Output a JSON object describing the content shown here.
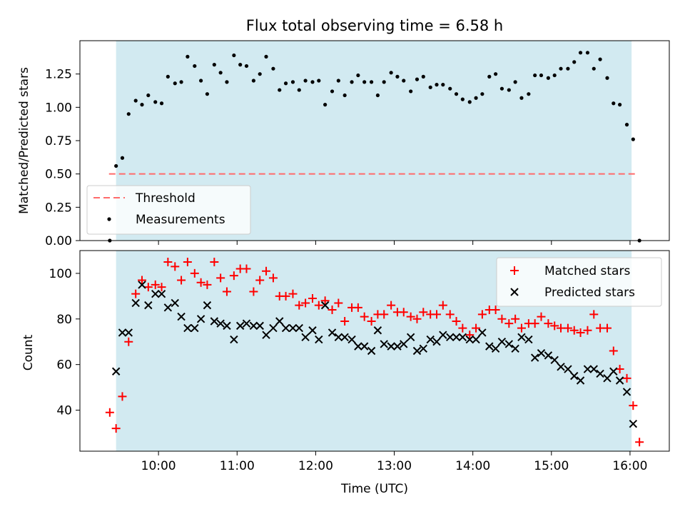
{
  "chart_data": [
    {
      "type": "scatter",
      "title": "Flux total observing time = 6.58 h",
      "xlabel": "",
      "ylabel": "Matched/Predicted stars",
      "xlim": [
        9.0,
        16.5
      ],
      "ylim": [
        0.0,
        1.5
      ],
      "xticks": [
        10,
        11,
        12,
        13,
        14,
        15,
        16
      ],
      "yticks": [
        0.0,
        0.25,
        0.5,
        0.75,
        1.0,
        1.25
      ],
      "ytick_labels": [
        "0.00",
        "0.25",
        "0.50",
        "0.75",
        "1.00",
        "1.25"
      ],
      "shaded_span": {
        "x_start": 9.46,
        "x_end": 16.02,
        "color": "#add8e6"
      },
      "threshold": {
        "name": "Threshold",
        "y": 0.5,
        "x_start": 9.37,
        "x_end": 16.07,
        "color": "#ff6b6b"
      },
      "legend_position": "lower-left",
      "series": [
        {
          "name": "Measurements",
          "marker": "dot",
          "color": "#000000",
          "x": [
            9.38,
            9.46,
            9.54,
            9.62,
            9.71,
            9.79,
            9.87,
            9.96,
            10.04,
            10.12,
            10.21,
            10.29,
            10.37,
            10.46,
            10.54,
            10.62,
            10.71,
            10.79,
            10.87,
            10.96,
            11.04,
            11.12,
            11.21,
            11.29,
            11.37,
            11.46,
            11.54,
            11.62,
            11.71,
            11.79,
            11.87,
            11.96,
            12.04,
            12.12,
            12.21,
            12.29,
            12.37,
            12.46,
            12.54,
            12.62,
            12.71,
            12.79,
            12.87,
            12.96,
            13.04,
            13.12,
            13.21,
            13.29,
            13.37,
            13.46,
            13.54,
            13.62,
            13.71,
            13.79,
            13.87,
            13.96,
            14.04,
            14.12,
            14.21,
            14.29,
            14.37,
            14.46,
            14.54,
            14.62,
            14.71,
            14.79,
            14.87,
            14.96,
            15.04,
            15.12,
            15.21,
            15.29,
            15.37,
            15.46,
            15.54,
            15.62,
            15.71,
            15.79,
            15.87,
            15.96,
            16.04,
            16.12
          ],
          "y": [
            0.0,
            0.56,
            0.62,
            0.95,
            1.05,
            1.02,
            1.09,
            1.04,
            1.03,
            1.23,
            1.18,
            1.19,
            1.38,
            1.31,
            1.2,
            1.1,
            1.32,
            1.26,
            1.19,
            1.39,
            1.32,
            1.31,
            1.2,
            1.25,
            1.38,
            1.29,
            1.13,
            1.18,
            1.19,
            1.13,
            1.2,
            1.19,
            1.2,
            1.02,
            1.12,
            1.2,
            1.09,
            1.19,
            1.24,
            1.19,
            1.19,
            1.09,
            1.19,
            1.26,
            1.23,
            1.2,
            1.12,
            1.21,
            1.23,
            1.15,
            1.17,
            1.17,
            1.14,
            1.1,
            1.06,
            1.04,
            1.07,
            1.1,
            1.23,
            1.25,
            1.14,
            1.13,
            1.19,
            1.07,
            1.1,
            1.24,
            1.24,
            1.22,
            1.24,
            1.29,
            1.29,
            1.34,
            1.41,
            1.41,
            1.29,
            1.36,
            1.22,
            1.03,
            1.02,
            0.87,
            0.76,
            0.0
          ]
        }
      ]
    },
    {
      "type": "scatter",
      "title": "",
      "xlabel": "Time (UTC)",
      "ylabel": "Count",
      "xlim": [
        9.0,
        16.5
      ],
      "ylim": [
        22,
        110
      ],
      "xticks": [
        10,
        11,
        12,
        13,
        14,
        15,
        16
      ],
      "xtick_labels": [
        "10:00",
        "11:00",
        "12:00",
        "13:00",
        "14:00",
        "15:00",
        "16:00"
      ],
      "yticks": [
        40,
        60,
        80,
        100
      ],
      "ytick_labels": [
        "40",
        "60",
        "80",
        "100"
      ],
      "shaded_span": {
        "x_start": 9.46,
        "x_end": 16.02,
        "color": "#add8e6"
      },
      "legend_position": "upper-right",
      "series": [
        {
          "name": "Matched stars",
          "marker": "plus",
          "color": "#ff0000",
          "x": [
            9.38,
            9.46,
            9.54,
            9.62,
            9.71,
            9.79,
            9.87,
            9.96,
            10.04,
            10.12,
            10.21,
            10.29,
            10.37,
            10.46,
            10.54,
            10.62,
            10.71,
            10.79,
            10.87,
            10.96,
            11.04,
            11.12,
            11.21,
            11.29,
            11.37,
            11.46,
            11.54,
            11.62,
            11.71,
            11.79,
            11.87,
            11.96,
            12.04,
            12.12,
            12.21,
            12.29,
            12.37,
            12.46,
            12.54,
            12.62,
            12.71,
            12.79,
            12.87,
            12.96,
            13.04,
            13.12,
            13.21,
            13.29,
            13.37,
            13.46,
            13.54,
            13.62,
            13.71,
            13.79,
            13.87,
            13.96,
            14.04,
            14.12,
            14.21,
            14.29,
            14.37,
            14.46,
            14.54,
            14.62,
            14.71,
            14.79,
            14.87,
            14.96,
            15.04,
            15.12,
            15.21,
            15.29,
            15.37,
            15.46,
            15.54,
            15.62,
            15.71,
            15.79,
            15.87,
            15.96,
            16.04,
            16.12
          ],
          "y": [
            39,
            32,
            46,
            70,
            91,
            97,
            94,
            95,
            94,
            105,
            103,
            97,
            105,
            100,
            96,
            95,
            105,
            98,
            92,
            99,
            102,
            102,
            92,
            97,
            101,
            98,
            90,
            90,
            91,
            86,
            87,
            89,
            86,
            88,
            84,
            87,
            79,
            85,
            85,
            81,
            79,
            82,
            82,
            86,
            83,
            83,
            81,
            80,
            83,
            82,
            82,
            86,
            82,
            79,
            76,
            73,
            76,
            82,
            84,
            84,
            80,
            78,
            80,
            76,
            78,
            78,
            81,
            78,
            77,
            76,
            76,
            75,
            74,
            75,
            82,
            76,
            76,
            66,
            58,
            54,
            42,
            26
          ]
        },
        {
          "name": "Predicted stars",
          "marker": "x",
          "color": "#000000",
          "x": [
            9.46,
            9.54,
            9.62,
            9.71,
            9.79,
            9.87,
            9.96,
            10.04,
            10.12,
            10.21,
            10.29,
            10.37,
            10.46,
            10.54,
            10.62,
            10.71,
            10.79,
            10.87,
            10.96,
            11.04,
            11.12,
            11.21,
            11.29,
            11.37,
            11.46,
            11.54,
            11.62,
            11.71,
            11.79,
            11.87,
            11.96,
            12.04,
            12.12,
            12.21,
            12.29,
            12.37,
            12.46,
            12.54,
            12.62,
            12.71,
            12.79,
            12.87,
            12.96,
            13.04,
            13.12,
            13.21,
            13.29,
            13.37,
            13.46,
            13.54,
            13.62,
            13.71,
            13.79,
            13.87,
            13.96,
            14.04,
            14.12,
            14.21,
            14.29,
            14.37,
            14.46,
            14.54,
            14.62,
            14.71,
            14.79,
            14.87,
            14.96,
            15.04,
            15.12,
            15.21,
            15.29,
            15.37,
            15.46,
            15.54,
            15.62,
            15.71,
            15.79,
            15.87,
            15.96,
            16.04
          ],
          "y": [
            57,
            74,
            74,
            87,
            95,
            86,
            91,
            91,
            85,
            87,
            81,
            76,
            76,
            80,
            86,
            79,
            78,
            77,
            71,
            77,
            78,
            77,
            77,
            73,
            76,
            79,
            76,
            76,
            76,
            72,
            75,
            71,
            86,
            74,
            72,
            72,
            71,
            68,
            68,
            66,
            75,
            69,
            68,
            68,
            69,
            72,
            66,
            67,
            71,
            70,
            73,
            72,
            72,
            72,
            71,
            71,
            74,
            68,
            67,
            70,
            69,
            67,
            72,
            71,
            63,
            65,
            64,
            62,
            59,
            58,
            55,
            53,
            58,
            58,
            56,
            54,
            57,
            53,
            48,
            34
          ]
        }
      ]
    }
  ]
}
